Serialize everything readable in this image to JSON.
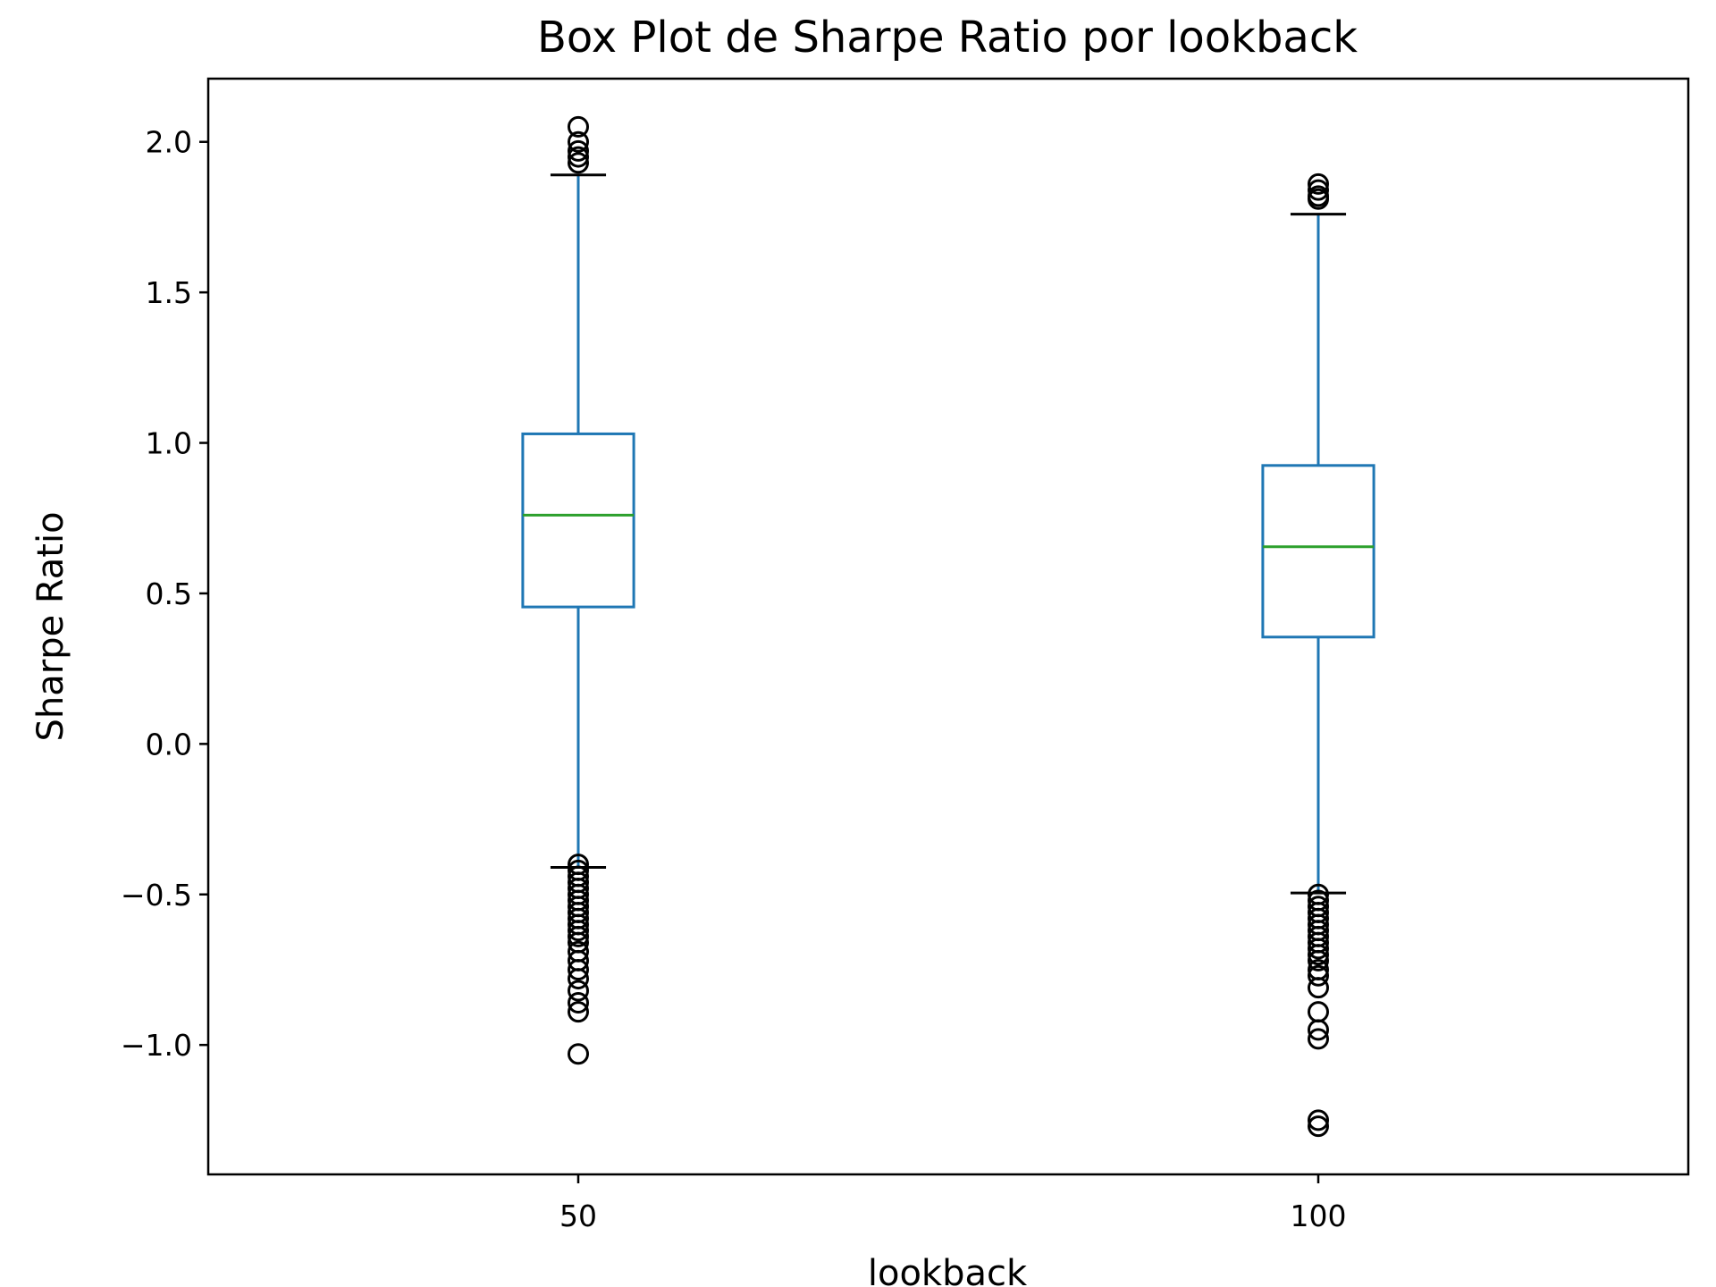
{
  "chart_data": {
    "type": "box",
    "title": "Box Plot de Sharpe Ratio por lookback",
    "xlabel": "lookback",
    "ylabel": "Sharpe Ratio",
    "categories": [
      "50",
      "100"
    ],
    "ylim": [
      -1.43,
      2.21
    ],
    "yticks": [
      2.0,
      1.5,
      1.0,
      0.5,
      0.0,
      -0.5,
      -1.0
    ],
    "ytick_labels": [
      "2.0",
      "1.5",
      "1.0",
      "0.5",
      "0.0",
      "−0.5",
      "−1.0"
    ],
    "grid": false,
    "colors": {
      "box": "#1f77b4",
      "median": "#2ca02c",
      "whisker": "#1f77b4",
      "cap": "#000000",
      "flier": "#000000"
    },
    "boxes": [
      {
        "category": "50",
        "whisker_low": -0.41,
        "q1": 0.455,
        "median": 0.76,
        "q3": 1.03,
        "whisker_high": 1.89,
        "fliers": [
          2.05,
          2.0,
          1.97,
          1.95,
          1.93,
          -0.4,
          -0.42,
          -0.44,
          -0.46,
          -0.48,
          -0.5,
          -0.52,
          -0.54,
          -0.56,
          -0.58,
          -0.6,
          -0.62,
          -0.64,
          -0.66,
          -0.69,
          -0.72,
          -0.75,
          -0.78,
          -0.82,
          -0.86,
          -0.89,
          -1.03
        ]
      },
      {
        "category": "100",
        "whisker_low": -0.495,
        "q1": 0.355,
        "median": 0.655,
        "q3": 0.925,
        "whisker_high": 1.76,
        "fliers": [
          1.86,
          1.84,
          1.82,
          1.81,
          -0.5,
          -0.52,
          -0.54,
          -0.56,
          -0.58,
          -0.6,
          -0.62,
          -0.64,
          -0.66,
          -0.68,
          -0.7,
          -0.72,
          -0.75,
          -0.77,
          -0.81,
          -0.89,
          -0.95,
          -0.98,
          -1.25,
          -1.27
        ]
      }
    ]
  }
}
